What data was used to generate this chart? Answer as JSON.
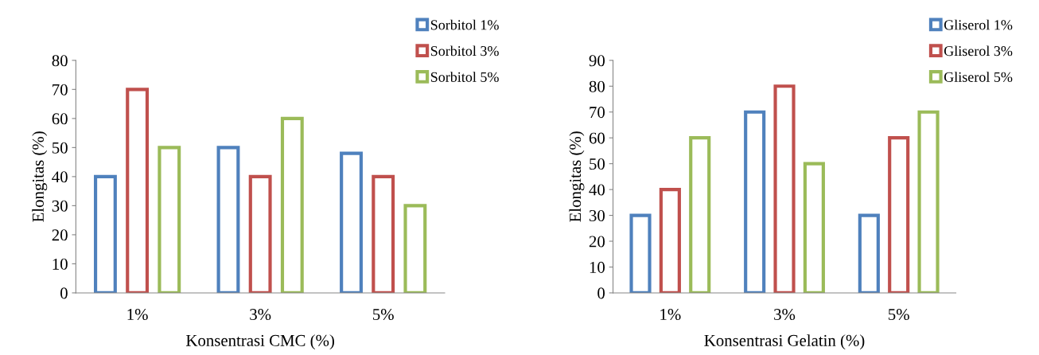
{
  "chart_data": [
    {
      "type": "bar",
      "xlabel": "Konsentrasi CMC (%)",
      "ylabel": "Elongitas (%)",
      "categories": [
        "1%",
        "3%",
        "5%"
      ],
      "ylim": [
        0,
        80
      ],
      "yticks": [
        0,
        10,
        20,
        30,
        40,
        50,
        60,
        70,
        80
      ],
      "grid": false,
      "legend": "top right",
      "series": [
        {
          "name": "Sorbitol 1%",
          "color": "#4f81bd",
          "values": [
            40,
            50,
            48
          ]
        },
        {
          "name": "Sorbitol 3%",
          "color": "#c0504d",
          "values": [
            70,
            40,
            40
          ]
        },
        {
          "name": "Sorbitol 5%",
          "color": "#9bbb59",
          "values": [
            50,
            60,
            30
          ]
        }
      ]
    },
    {
      "type": "bar",
      "xlabel": "Konsentrasi Gelatin (%)",
      "ylabel": "Elongitas (%)",
      "categories": [
        "1%",
        "3%",
        "5%"
      ],
      "ylim": [
        0,
        90
      ],
      "yticks": [
        0,
        10,
        20,
        30,
        40,
        50,
        60,
        70,
        80,
        90
      ],
      "grid": false,
      "legend": "top right",
      "series": [
        {
          "name": "Gliserol 1%",
          "color": "#4f81bd",
          "values": [
            30,
            70,
            30
          ]
        },
        {
          "name": "Gliserol 3%",
          "color": "#c0504d",
          "values": [
            40,
            80,
            60
          ]
        },
        {
          "name": "Gliserol 5%",
          "color": "#9bbb59",
          "values": [
            60,
            50,
            70
          ]
        }
      ]
    }
  ]
}
